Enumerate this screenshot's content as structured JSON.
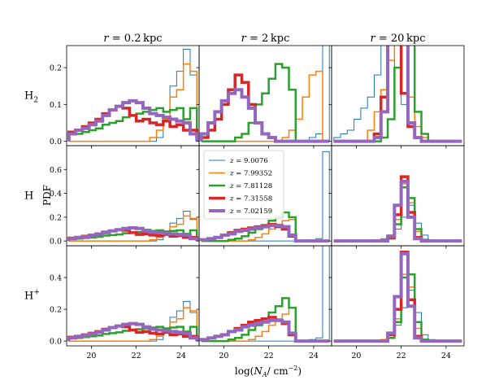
{
  "colors": [
    "#1f77b4",
    "#ff7f0e",
    "#2ca02c",
    "#d62728",
    "#9467bd"
  ],
  "chart_data": {
    "type": "line",
    "subtype": "step-histogram-grid",
    "columns": [
      {
        "prefix": "r = ",
        "value": "0.2",
        "unit": "kpc"
      },
      {
        "prefix": "r = ",
        "value": "2",
        "unit": "kpc"
      },
      {
        "prefix": "r = ",
        "value": "20",
        "unit": "kpc"
      }
    ],
    "rows": [
      {
        "base": "H",
        "sub": "2",
        "sup": "",
        "ylim": [
          -0.012,
          0.26
        ],
        "yticks": [
          "0.0",
          "0.1",
          "0.2"
        ],
        "ytick_values": [
          0,
          0.1,
          0.2
        ]
      },
      {
        "base": "H",
        "sub": "",
        "sup": "",
        "ylim": [
          -0.04,
          0.8
        ],
        "yticks": [
          "0.0",
          "0.2",
          "0.4",
          "0.6"
        ],
        "ytick_values": [
          0,
          0.2,
          0.4,
          0.6
        ]
      },
      {
        "base": "H",
        "sub": "",
        "sup": "+",
        "ylim": [
          -0.03,
          0.6
        ],
        "yticks": [
          "0.0",
          "0.2",
          "0.4"
        ],
        "ytick_values": [
          0,
          0.2,
          0.4
        ]
      }
    ],
    "ylabel": "PDF",
    "xlabel": {
      "prefix": "log(",
      "var": "N",
      "sub": "A",
      "slash": "/ cm",
      "sup": "−2",
      "suffix": ")"
    },
    "xlim": [
      18.9,
      24.8
    ],
    "xticks": [
      "20",
      "22",
      "24"
    ],
    "xtick_values": [
      20,
      22,
      24
    ],
    "bin_edges": [
      19.0,
      19.3,
      19.6,
      19.9,
      20.2,
      20.5,
      20.8,
      21.1,
      21.4,
      21.7,
      22.0,
      22.3,
      22.6,
      22.9,
      23.2,
      23.5,
      23.8,
      24.1,
      24.4,
      24.7
    ],
    "legend": {
      "placement": "upper-left of middle panel",
      "entries": [
        {
          "var": "z",
          "value": "9.0076"
        },
        {
          "var": "z",
          "value": "7.99352"
        },
        {
          "var": "z",
          "value": "7.81128"
        },
        {
          "var": "z",
          "value": "7.31558"
        },
        {
          "var": "z",
          "value": "7.02159"
        }
      ]
    },
    "series_widths": [
      1,
      1.5,
      2.5,
      3.5,
      4
    ],
    "panels": [
      [
        [
          [
            0,
            0,
            0,
            0,
            0,
            0,
            0,
            0,
            0,
            0,
            0,
            0,
            0,
            0.01,
            0.06,
            0.15,
            0.19,
            0.25,
            0.18
          ],
          [
            0,
            0,
            0,
            0,
            0,
            0,
            0,
            0,
            0,
            0,
            0,
            0,
            0.01,
            0.03,
            0.06,
            0.12,
            0.14,
            0.21,
            0.19
          ],
          [
            0.02,
            0.02,
            0.025,
            0.03,
            0.035,
            0.045,
            0.05,
            0.055,
            0.065,
            0.07,
            0.075,
            0.08,
            0.085,
            0.09,
            0.08,
            0.085,
            0.09,
            0.06,
            0.09
          ],
          [
            0.025,
            0.03,
            0.04,
            0.05,
            0.06,
            0.075,
            0.085,
            0.095,
            0.09,
            0.07,
            0.055,
            0.06,
            0.05,
            0.045,
            0.055,
            0.04,
            0.045,
            0.03,
            0.03
          ],
          [
            0.02,
            0.03,
            0.035,
            0.045,
            0.055,
            0.07,
            0.085,
            0.095,
            0.105,
            0.11,
            0.105,
            0.09,
            0.075,
            0.07,
            0.065,
            0.06,
            0.055,
            0.05,
            0.02
          ]
        ],
        [
          [
            0,
            0,
            0,
            0,
            0,
            0,
            0,
            0,
            0,
            0,
            0,
            0,
            0,
            0,
            0,
            0,
            0.01,
            0.02,
            0.75
          ],
          [
            0,
            0,
            0,
            0,
            0,
            0,
            0,
            0,
            0,
            0,
            0,
            0,
            0.01,
            0.03,
            0.06,
            0.12,
            0.18,
            0.19,
            0
          ],
          [
            0,
            0,
            0,
            0,
            0,
            0.01,
            0.02,
            0.05,
            0.1,
            0.13,
            0.17,
            0.21,
            0.2,
            0.14,
            0,
            0,
            0,
            0,
            0
          ],
          [
            0.01,
            0.03,
            0.06,
            0.1,
            0.14,
            0.18,
            0.16,
            0.1,
            0.05,
            0.02,
            0.01,
            0,
            0,
            0,
            0,
            0,
            0,
            0,
            0
          ],
          [
            0.02,
            0.05,
            0.08,
            0.11,
            0.13,
            0.14,
            0.12,
            0.09,
            0.05,
            0.02,
            0.01,
            0,
            0,
            0,
            0,
            0,
            0,
            0,
            0
          ]
        ],
        [
          [
            0.01,
            0.02,
            0.03,
            0.06,
            0.09,
            0.12,
            0.18,
            0.3,
            0.34,
            0.2,
            0.1,
            0.04,
            0.01,
            0,
            0,
            0,
            0,
            0,
            0
          ],
          [
            0,
            0,
            0,
            0,
            0,
            0.03,
            0.08,
            0.14,
            0.22,
            0.3,
            0.28,
            0.12,
            0.04,
            0.01,
            0,
            0,
            0,
            0,
            0
          ],
          [
            0,
            0,
            0,
            0,
            0,
            0,
            0,
            0.01,
            0.06,
            0.2,
            0.47,
            0.3,
            0.08,
            0.02,
            0,
            0,
            0,
            0,
            0
          ],
          [
            0,
            0,
            0,
            0,
            0,
            0,
            0.02,
            0.12,
            0.39,
            0.34,
            0.13,
            0.04,
            0.01,
            0,
            0,
            0,
            0,
            0,
            0
          ],
          [
            0,
            0,
            0,
            0,
            0,
            0,
            0.01,
            0.08,
            0.36,
            0.52,
            0.28,
            0.05,
            0.01,
            0,
            0,
            0,
            0,
            0,
            0
          ]
        ]
      ],
      [
        [
          [
            0,
            0,
            0,
            0,
            0,
            0,
            0,
            0,
            0,
            0,
            0,
            0,
            0,
            0.01,
            0.06,
            0.15,
            0.19,
            0.25,
            0.18
          ],
          [
            0,
            0,
            0,
            0,
            0,
            0,
            0,
            0,
            0,
            0,
            0,
            0,
            0.01,
            0.03,
            0.06,
            0.12,
            0.14,
            0.21,
            0.19
          ],
          [
            0.02,
            0.02,
            0.025,
            0.03,
            0.035,
            0.045,
            0.05,
            0.055,
            0.065,
            0.07,
            0.075,
            0.08,
            0.085,
            0.09,
            0.08,
            0.085,
            0.09,
            0.06,
            0.09
          ],
          [
            0.025,
            0.03,
            0.04,
            0.05,
            0.06,
            0.075,
            0.085,
            0.095,
            0.09,
            0.07,
            0.055,
            0.06,
            0.05,
            0.045,
            0.055,
            0.04,
            0.045,
            0.03,
            0.03
          ],
          [
            0.02,
            0.03,
            0.035,
            0.045,
            0.055,
            0.07,
            0.085,
            0.095,
            0.105,
            0.11,
            0.105,
            0.09,
            0.075,
            0.07,
            0.065,
            0.06,
            0.055,
            0.05,
            0.02
          ]
        ],
        [
          [
            0,
            0,
            0,
            0,
            0,
            0,
            0,
            0,
            0,
            0,
            0,
            0,
            0,
            0,
            0,
            0,
            0.01,
            0.02,
            0.75
          ],
          [
            0,
            0,
            0,
            0,
            0,
            0,
            0,
            0.01,
            0.03,
            0.06,
            0.1,
            0.14,
            0.17,
            0.18,
            0,
            0,
            0,
            0,
            0
          ],
          [
            0,
            0,
            0,
            0,
            0.01,
            0.02,
            0.04,
            0.07,
            0.1,
            0.13,
            0.17,
            0.2,
            0.24,
            0.2,
            0,
            0,
            0,
            0,
            0
          ],
          [
            0.01,
            0.02,
            0.03,
            0.05,
            0.07,
            0.09,
            0.1,
            0.11,
            0.12,
            0.13,
            0.14,
            0.12,
            0.1,
            0.04,
            0,
            0,
            0,
            0,
            0
          ],
          [
            0.01,
            0.02,
            0.03,
            0.05,
            0.06,
            0.08,
            0.09,
            0.1,
            0.11,
            0.12,
            0.13,
            0.13,
            0.12,
            0.05,
            0,
            0,
            0,
            0,
            0
          ]
        ],
        [
          [
            0,
            0,
            0,
            0,
            0,
            0,
            0.01,
            0.02,
            0.05,
            0.1,
            0.2,
            0.3,
            0.15,
            0.05,
            0.01,
            0,
            0,
            0,
            0
          ],
          [
            0,
            0,
            0,
            0,
            0,
            0,
            0,
            0.01,
            0.05,
            0.18,
            0.48,
            0.32,
            0.08,
            0.01,
            0,
            0,
            0,
            0,
            0
          ],
          [
            0,
            0,
            0,
            0,
            0,
            0,
            0,
            0,
            0.02,
            0.14,
            0.45,
            0.36,
            0.1,
            0.01,
            0,
            0,
            0,
            0,
            0
          ],
          [
            0,
            0,
            0,
            0,
            0,
            0,
            0,
            0,
            0.03,
            0.22,
            0.54,
            0.24,
            0.03,
            0,
            0,
            0,
            0,
            0,
            0
          ],
          [
            0,
            0,
            0,
            0,
            0,
            0,
            0,
            0,
            0.04,
            0.3,
            0.5,
            0.2,
            0.02,
            0,
            0,
            0,
            0,
            0,
            0
          ]
        ]
      ],
      [
        [
          [
            0,
            0,
            0,
            0,
            0,
            0,
            0,
            0,
            0,
            0,
            0,
            0,
            0,
            0.01,
            0.06,
            0.15,
            0.19,
            0.25,
            0.18
          ],
          [
            0,
            0,
            0,
            0,
            0,
            0,
            0,
            0,
            0,
            0,
            0,
            0,
            0.01,
            0.03,
            0.06,
            0.12,
            0.14,
            0.21,
            0.19
          ],
          [
            0.02,
            0.02,
            0.025,
            0.03,
            0.035,
            0.045,
            0.05,
            0.055,
            0.065,
            0.07,
            0.075,
            0.08,
            0.085,
            0.09,
            0.08,
            0.085,
            0.09,
            0.06,
            0.09
          ],
          [
            0.025,
            0.03,
            0.04,
            0.05,
            0.06,
            0.075,
            0.085,
            0.095,
            0.09,
            0.07,
            0.055,
            0.06,
            0.05,
            0.045,
            0.055,
            0.04,
            0.045,
            0.03,
            0.03
          ],
          [
            0.02,
            0.03,
            0.035,
            0.045,
            0.055,
            0.07,
            0.085,
            0.095,
            0.105,
            0.11,
            0.105,
            0.09,
            0.075,
            0.07,
            0.065,
            0.06,
            0.055,
            0.05,
            0.02
          ]
        ],
        [
          [
            0,
            0,
            0,
            0,
            0,
            0,
            0,
            0,
            0,
            0,
            0,
            0,
            0,
            0,
            0,
            0,
            0.01,
            0.02,
            0.75
          ],
          [
            0,
            0,
            0,
            0,
            0,
            0,
            0,
            0.01,
            0.03,
            0.06,
            0.1,
            0.14,
            0.17,
            0.21,
            0,
            0,
            0,
            0,
            0
          ],
          [
            0,
            0,
            0,
            0,
            0.01,
            0.02,
            0.04,
            0.07,
            0.1,
            0.14,
            0.18,
            0.22,
            0.27,
            0.21,
            0,
            0,
            0,
            0,
            0
          ],
          [
            0.01,
            0.02,
            0.03,
            0.04,
            0.06,
            0.08,
            0.1,
            0.12,
            0.13,
            0.14,
            0.15,
            0.13,
            0.11,
            0.04,
            0,
            0,
            0,
            0,
            0
          ],
          [
            0.01,
            0.02,
            0.03,
            0.04,
            0.06,
            0.07,
            0.09,
            0.1,
            0.11,
            0.12,
            0.13,
            0.13,
            0.12,
            0.05,
            0,
            0,
            0,
            0,
            0
          ]
        ],
        [
          [
            0,
            0,
            0,
            0,
            0,
            0,
            0,
            0.01,
            0.04,
            0.1,
            0.21,
            0.32,
            0.18,
            0.04,
            0.01,
            0,
            0,
            0,
            0
          ],
          [
            0,
            0,
            0,
            0,
            0,
            0,
            0,
            0.01,
            0.05,
            0.14,
            0.42,
            0.34,
            0.08,
            0.01,
            0,
            0,
            0,
            0,
            0
          ],
          [
            0,
            0,
            0,
            0,
            0,
            0,
            0,
            0,
            0.02,
            0.12,
            0.4,
            0.42,
            0.12,
            0.01,
            0,
            0,
            0,
            0,
            0
          ],
          [
            0,
            0,
            0,
            0,
            0,
            0,
            0,
            0,
            0.04,
            0.2,
            0.56,
            0.26,
            0.03,
            0,
            0,
            0,
            0,
            0,
            0
          ],
          [
            0,
            0,
            0,
            0,
            0,
            0,
            0,
            0,
            0.05,
            0.28,
            0.55,
            0.22,
            0.02,
            0,
            0,
            0,
            0,
            0,
            0
          ]
        ]
      ]
    ]
  }
}
